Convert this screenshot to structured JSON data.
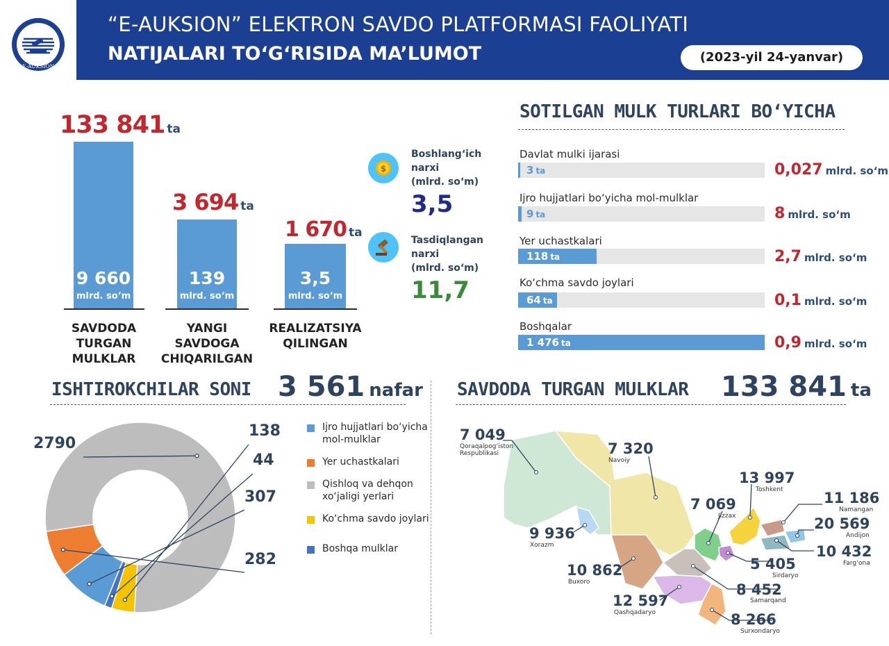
{
  "header": {
    "logo_text": "E-AUKSION",
    "title_line1": "“E-AUKSION” ELEKTRON SAVDO PLATFORMASI FAOLIYATI",
    "title_line2": "NATIJALARI TO‘G‘RISIDA MA’LUMOT",
    "date": "(2023-yil 24-yanvar)",
    "colors": {
      "header_bg": "#1b3f93",
      "accent_red": "#c1272d",
      "bar_blue": "#5b9bd5"
    }
  },
  "bars": [
    {
      "count": "133 841",
      "count_unit": "ta",
      "amount": "9 660",
      "amount_unit": "mlrd. so‘m",
      "label_line1": "SAVDODA",
      "label_line2": "TURGAN MULKLAR",
      "value": 133841
    },
    {
      "count": "3 694",
      "count_unit": "ta",
      "amount": "139",
      "amount_unit": "mlrd. so‘m",
      "label_line1": "YANGI SAVDOGA",
      "label_line2": "CHIQARILGAN",
      "value": 3694
    },
    {
      "count": "1 670",
      "count_unit": "ta",
      "amount": "3,5",
      "amount_unit": "mlrd. so‘m",
      "label_line1": "REALIZATSIYA",
      "label_line2": "QILINGAN",
      "value": 1670
    }
  ],
  "prices": {
    "start": {
      "icon": "coin-icon",
      "caption_line1": "Boshlang‘ich",
      "caption_line2": "narxi",
      "caption_line3": "(mlrd. so‘m)",
      "value": "3,5",
      "color": "#1f2a8c"
    },
    "approved": {
      "icon": "gavel-icon",
      "caption_line1": "Tasdiqlangan",
      "caption_line2": "narxi",
      "caption_line3": "(mlrd. so‘m)",
      "value": "11,7",
      "color": "#3a8a3a"
    }
  },
  "property_types": {
    "title": "SOTILGAN MULK TURLARI BO‘YICHA",
    "unit": "ta",
    "amount_unit": "mlrd. so‘m",
    "items": [
      {
        "label": "Davlat mulki ijarasi",
        "count": "3",
        "amount": "0,027",
        "fill": 0.005
      },
      {
        "label": "Ijro hujjatlari bo‘yicha mol-mulklar",
        "count": "9",
        "amount": "8",
        "fill": 0.015
      },
      {
        "label": "Yer uchastkalari",
        "count": "118",
        "amount": "2,7",
        "fill": 0.32
      },
      {
        "label": "Ko‘chma savdo joylari",
        "count": "64",
        "amount": "0,1",
        "fill": 0.16
      },
      {
        "label": "Boshqalar",
        "count": "1 476",
        "amount": "0,9",
        "fill": 1.0
      }
    ]
  },
  "participants": {
    "title": "ISHTIROKCHILAR SONI",
    "total": "3 561",
    "total_unit": "nafar",
    "slices": [
      {
        "name": "Qishloq va dehqon xo‘jaligi yerlari",
        "value": 2790,
        "label": "2790",
        "color": "#bdbdbd"
      },
      {
        "name": "Ko‘chma savdo joylari",
        "value": 138,
        "label": "138",
        "color": "#f5c400"
      },
      {
        "name": "Boshqa mulklar",
        "value": 44,
        "label": "44",
        "color": "#4472c4"
      },
      {
        "name": "Ijro hujjatlari bo‘yicha mol-mulklar",
        "value": 307,
        "label": "307",
        "color": "#5b9bd5"
      },
      {
        "name": "Yer uchastkalari",
        "value": 282,
        "label": "282",
        "color": "#ed7d31"
      }
    ],
    "legend": [
      {
        "text": "Ijro hujjatlari bo‘yicha mol-mulklar",
        "color": "#5b9bd5"
      },
      {
        "text": "Yer uchastkalari",
        "color": "#ed7d31"
      },
      {
        "text": "Qishloq va dehqon xo‘jaligi yerlari",
        "color": "#bdbdbd"
      },
      {
        "text": "Ko‘chma savdo joylari",
        "color": "#f5c400"
      },
      {
        "text": "Boshqa mulklar",
        "color": "#4472c4"
      }
    ]
  },
  "map": {
    "title": "SAVDODA TURGAN MULKLAR",
    "total": "133 841",
    "total_unit": "ta",
    "regions": [
      {
        "name": "Qoraqalpog‘iston Respublikasi",
        "value": "7 049",
        "color": "#cfe8d6"
      },
      {
        "name": "Navoiy",
        "value": "7 320",
        "color": "#efe6a8"
      },
      {
        "name": "Toshkent",
        "value": "13 997",
        "color": "#f5d33c"
      },
      {
        "name": "Namangan",
        "value": "11 186",
        "color": "#c99a8a"
      },
      {
        "name": "Jizzax",
        "value": "7 069",
        "color": "#7fd08a"
      },
      {
        "name": "Andijon",
        "value": "20 569",
        "color": "#93c6e8"
      },
      {
        "name": "Xorazm",
        "value": "9 936",
        "color": "#b9d8f2"
      },
      {
        "name": "Farg‘ona",
        "value": "10 432",
        "color": "#8fb8c0"
      },
      {
        "name": "Sirdaryo",
        "value": "5 405",
        "color": "#c38ad6"
      },
      {
        "name": "Buxoro",
        "value": "10 862",
        "color": "#d6a584"
      },
      {
        "name": "Samarqand",
        "value": "8 452",
        "color": "#c9c0bc"
      },
      {
        "name": "Qashqadaryo",
        "value": "12 597",
        "color": "#dcb8e8"
      },
      {
        "name": "Surxondaryo",
        "value": "8 266",
        "color": "#f2b57c"
      }
    ]
  }
}
